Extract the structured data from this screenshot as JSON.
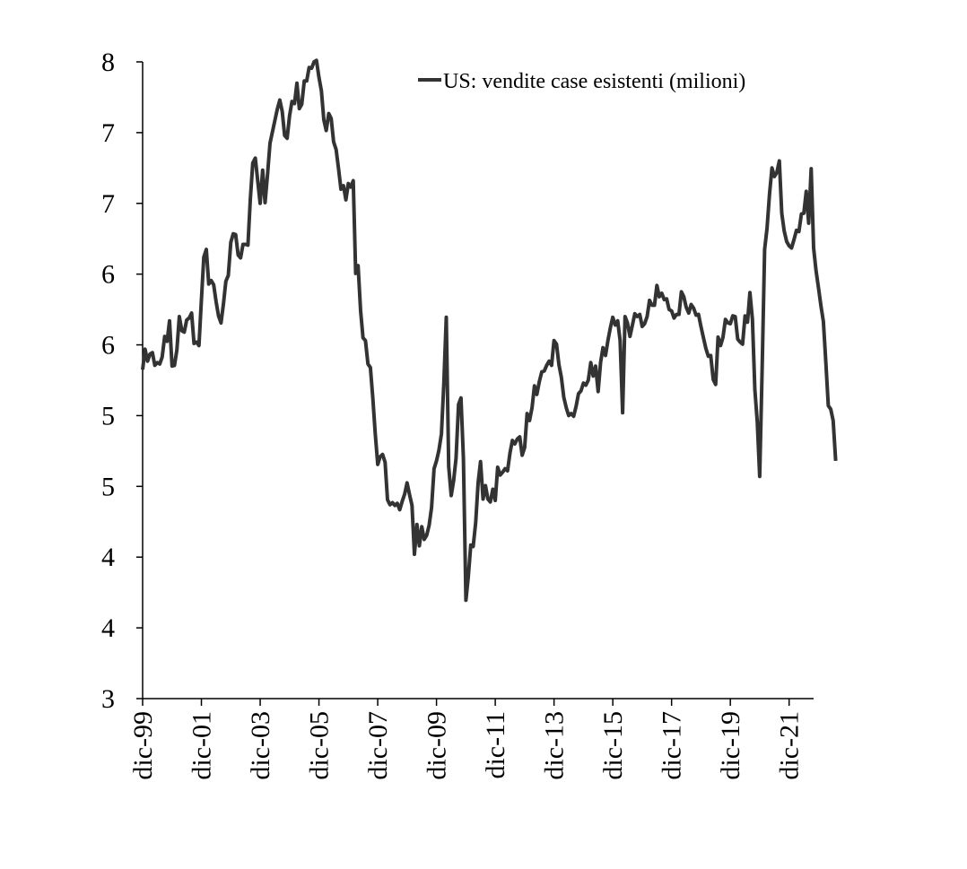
{
  "chart_data": {
    "type": "line",
    "title": "",
    "xlabel": "",
    "ylabel": "",
    "y_tick_labels": [
      "3",
      "4",
      "4",
      "5",
      "5",
      "6",
      "6",
      "7",
      "7",
      "8"
    ],
    "ylim_ticks": [
      0,
      9
    ],
    "x_tick_labels": [
      "dic-99",
      "dic-01",
      "dic-03",
      "dic-05",
      "dic-07",
      "dic-09",
      "dic-11",
      "dic-13",
      "dic-15",
      "dic-17",
      "dic-19",
      "dic-21"
    ],
    "xlim_months": [
      0,
      274
    ],
    "legend": {
      "position": "top-right"
    },
    "grid": false,
    "series": [
      {
        "name": "US: vendite case esistenti (milioni)",
        "color": "#333333",
        "points": [
          [
            0,
            4.65
          ],
          [
            1,
            4.94
          ],
          [
            2,
            4.77
          ],
          [
            3,
            4.87
          ],
          [
            4,
            4.89
          ],
          [
            5,
            4.71
          ],
          [
            6,
            4.75
          ],
          [
            7,
            4.73
          ],
          [
            8,
            4.83
          ],
          [
            9,
            5.12
          ],
          [
            10,
            5.05
          ],
          [
            11,
            5.34
          ],
          [
            12,
            4.7
          ],
          [
            13,
            4.71
          ],
          [
            14,
            4.93
          ],
          [
            15,
            5.4
          ],
          [
            16,
            5.2
          ],
          [
            17,
            5.18
          ],
          [
            18,
            5.35
          ],
          [
            19,
            5.38
          ],
          [
            20,
            5.45
          ],
          [
            21,
            5.02
          ],
          [
            22,
            5.04
          ],
          [
            23,
            4.99
          ],
          [
            24,
            5.63
          ],
          [
            25,
            6.24
          ],
          [
            26,
            6.35
          ],
          [
            27,
            5.86
          ],
          [
            28,
            5.91
          ],
          [
            29,
            5.85
          ],
          [
            30,
            5.61
          ],
          [
            31,
            5.41
          ],
          [
            32,
            5.31
          ],
          [
            33,
            5.58
          ],
          [
            34,
            5.9
          ],
          [
            35,
            5.98
          ],
          [
            36,
            6.45
          ],
          [
            37,
            6.57
          ],
          [
            38,
            6.56
          ],
          [
            39,
            6.27
          ],
          [
            40,
            6.23
          ],
          [
            41,
            6.42
          ],
          [
            42,
            6.42
          ],
          [
            43,
            6.41
          ],
          [
            44,
            7.07
          ],
          [
            45,
            7.57
          ],
          [
            46,
            7.64
          ],
          [
            47,
            7.32
          ],
          [
            48,
            7.0
          ],
          [
            49,
            7.47
          ],
          [
            50,
            7.01
          ],
          [
            51,
            7.4
          ],
          [
            52,
            7.85
          ],
          [
            53,
            8.01
          ],
          [
            54,
            8.17
          ],
          [
            55,
            8.33
          ],
          [
            56,
            8.46
          ],
          [
            57,
            8.3
          ],
          [
            58,
            7.96
          ],
          [
            59,
            7.92
          ],
          [
            60,
            8.24
          ],
          [
            61,
            8.44
          ],
          [
            62,
            8.41
          ],
          [
            63,
            8.7
          ],
          [
            64,
            8.34
          ],
          [
            65,
            8.4
          ],
          [
            66,
            8.73
          ],
          [
            67,
            8.73
          ],
          [
            68,
            8.92
          ],
          [
            69,
            8.91
          ],
          [
            70,
            9.0
          ],
          [
            71,
            9.02
          ],
          [
            72,
            8.78
          ],
          [
            73,
            8.59
          ],
          [
            74,
            8.18
          ],
          [
            75,
            8.03
          ],
          [
            76,
            8.27
          ],
          [
            77,
            8.2
          ],
          [
            78,
            7.87
          ],
          [
            79,
            7.76
          ],
          [
            80,
            7.49
          ],
          [
            81,
            7.2
          ],
          [
            82,
            7.25
          ],
          [
            83,
            7.05
          ],
          [
            84,
            7.28
          ],
          [
            85,
            7.23
          ],
          [
            86,
            7.32
          ],
          [
            87,
            6.01
          ],
          [
            88,
            6.12
          ],
          [
            89,
            5.48
          ],
          [
            90,
            5.1
          ],
          [
            91,
            5.06
          ],
          [
            92,
            4.73
          ],
          [
            93,
            4.68
          ],
          [
            94,
            4.25
          ],
          [
            95,
            3.75
          ],
          [
            96,
            3.31
          ],
          [
            97,
            3.42
          ],
          [
            98,
            3.45
          ],
          [
            99,
            3.34
          ],
          [
            100,
            2.81
          ],
          [
            101,
            2.74
          ],
          [
            102,
            2.77
          ],
          [
            103,
            2.73
          ],
          [
            104,
            2.76
          ],
          [
            105,
            2.67
          ],
          [
            106,
            2.79
          ],
          [
            107,
            2.89
          ],
          [
            108,
            3.05
          ],
          [
            109,
            2.88
          ],
          [
            110,
            2.73
          ],
          [
            111,
            2.04
          ],
          [
            112,
            2.46
          ],
          [
            113,
            2.16
          ],
          [
            114,
            2.43
          ],
          [
            115,
            2.25
          ],
          [
            116,
            2.31
          ],
          [
            117,
            2.45
          ],
          [
            118,
            2.7
          ],
          [
            119,
            3.25
          ],
          [
            120,
            3.36
          ],
          [
            121,
            3.51
          ],
          [
            122,
            3.74
          ],
          [
            123,
            4.46
          ],
          [
            124,
            5.39
          ],
          [
            125,
            3.28
          ],
          [
            126,
            2.87
          ],
          [
            127,
            3.08
          ],
          [
            128,
            3.4
          ],
          [
            129,
            4.16
          ],
          [
            130,
            4.25
          ],
          [
            131,
            3.4
          ],
          [
            132,
            1.39
          ],
          [
            133,
            1.73
          ],
          [
            134,
            2.17
          ],
          [
            135,
            2.15
          ],
          [
            136,
            2.49
          ],
          [
            137,
            3.05
          ],
          [
            138,
            3.35
          ],
          [
            139,
            2.82
          ],
          [
            140,
            3.01
          ],
          [
            141,
            2.82
          ],
          [
            142,
            2.78
          ],
          [
            143,
            2.96
          ],
          [
            144,
            2.8
          ],
          [
            145,
            3.27
          ],
          [
            146,
            3.16
          ],
          [
            147,
            3.2
          ],
          [
            148,
            3.25
          ],
          [
            149,
            3.22
          ],
          [
            150,
            3.47
          ],
          [
            151,
            3.65
          ],
          [
            152,
            3.6
          ],
          [
            153,
            3.67
          ],
          [
            154,
            3.7
          ],
          [
            155,
            3.44
          ],
          [
            156,
            3.55
          ],
          [
            157,
            4.03
          ],
          [
            158,
            3.93
          ],
          [
            159,
            4.11
          ],
          [
            160,
            4.42
          ],
          [
            161,
            4.3
          ],
          [
            162,
            4.48
          ],
          [
            163,
            4.62
          ],
          [
            164,
            4.63
          ],
          [
            165,
            4.71
          ],
          [
            166,
            4.77
          ],
          [
            167,
            4.71
          ],
          [
            168,
            5.06
          ],
          [
            169,
            5.01
          ],
          [
            170,
            4.72
          ],
          [
            171,
            4.54
          ],
          [
            172,
            4.26
          ],
          [
            173,
            4.11
          ],
          [
            174,
            4.0
          ],
          [
            175,
            4.03
          ],
          [
            176,
            3.99
          ],
          [
            177,
            4.13
          ],
          [
            178,
            4.31
          ],
          [
            179,
            4.35
          ],
          [
            180,
            4.46
          ],
          [
            181,
            4.43
          ],
          [
            182,
            4.5
          ],
          [
            183,
            4.75
          ],
          [
            184,
            4.56
          ],
          [
            185,
            4.7
          ],
          [
            186,
            4.34
          ],
          [
            187,
            4.75
          ],
          [
            188,
            4.96
          ],
          [
            189,
            4.85
          ],
          [
            190,
            5.06
          ],
          [
            191,
            5.24
          ],
          [
            192,
            5.39
          ],
          [
            193,
            5.28
          ],
          [
            194,
            5.34
          ],
          [
            195,
            5.06
          ],
          [
            196,
            4.04
          ],
          [
            197,
            5.4
          ],
          [
            198,
            5.31
          ],
          [
            199,
            5.12
          ],
          [
            200,
            5.28
          ],
          [
            201,
            5.44
          ],
          [
            202,
            5.4
          ],
          [
            203,
            5.43
          ],
          [
            204,
            5.26
          ],
          [
            205,
            5.3
          ],
          [
            206,
            5.4
          ],
          [
            207,
            5.63
          ],
          [
            208,
            5.56
          ],
          [
            209,
            5.56
          ],
          [
            210,
            5.84
          ],
          [
            211,
            5.68
          ],
          [
            212,
            5.73
          ],
          [
            213,
            5.64
          ],
          [
            214,
            5.65
          ],
          [
            215,
            5.5
          ],
          [
            216,
            5.48
          ],
          [
            217,
            5.38
          ],
          [
            218,
            5.43
          ],
          [
            219,
            5.43
          ],
          [
            220,
            5.75
          ],
          [
            221,
            5.68
          ],
          [
            222,
            5.53
          ],
          [
            223,
            5.45
          ],
          [
            224,
            5.57
          ],
          [
            225,
            5.52
          ],
          [
            226,
            5.42
          ],
          [
            227,
            5.43
          ],
          [
            228,
            5.26
          ],
          [
            229,
            5.1
          ],
          [
            230,
            4.95
          ],
          [
            231,
            4.84
          ],
          [
            232,
            4.85
          ],
          [
            233,
            4.51
          ],
          [
            234,
            4.44
          ],
          [
            235,
            5.11
          ],
          [
            236,
            4.99
          ],
          [
            237,
            5.11
          ],
          [
            238,
            5.36
          ],
          [
            239,
            5.31
          ],
          [
            240,
            5.3
          ],
          [
            241,
            5.41
          ],
          [
            242,
            5.4
          ],
          [
            243,
            5.08
          ],
          [
            244,
            5.04
          ],
          [
            245,
            5.01
          ],
          [
            246,
            5.41
          ],
          [
            247,
            5.32
          ],
          [
            248,
            5.74
          ],
          [
            249,
            5.36
          ],
          [
            250,
            4.37
          ],
          [
            251,
            3.91
          ],
          [
            252,
            3.14
          ],
          [
            253,
            4.7
          ],
          [
            254,
            6.35
          ],
          [
            255,
            6.65
          ],
          [
            256,
            7.14
          ],
          [
            257,
            7.5
          ],
          [
            258,
            7.38
          ],
          [
            259,
            7.44
          ],
          [
            260,
            7.6
          ],
          [
            261,
            6.86
          ],
          [
            262,
            6.61
          ],
          [
            263,
            6.46
          ],
          [
            264,
            6.4
          ],
          [
            265,
            6.37
          ],
          [
            266,
            6.49
          ],
          [
            267,
            6.62
          ],
          [
            268,
            6.6
          ],
          [
            269,
            6.85
          ],
          [
            270,
            6.86
          ],
          [
            271,
            7.17
          ],
          [
            272,
            6.72
          ],
          [
            273,
            7.49
          ],
          [
            274,
            6.37
          ],
          [
            275,
            6.05
          ],
          [
            276,
            5.8
          ],
          [
            277,
            5.55
          ],
          [
            278,
            5.33
          ],
          [
            279,
            4.76
          ],
          [
            280,
            4.14
          ],
          [
            281,
            4.09
          ],
          [
            282,
            3.93
          ],
          [
            283,
            3.36
          ]
        ]
      }
    ]
  }
}
